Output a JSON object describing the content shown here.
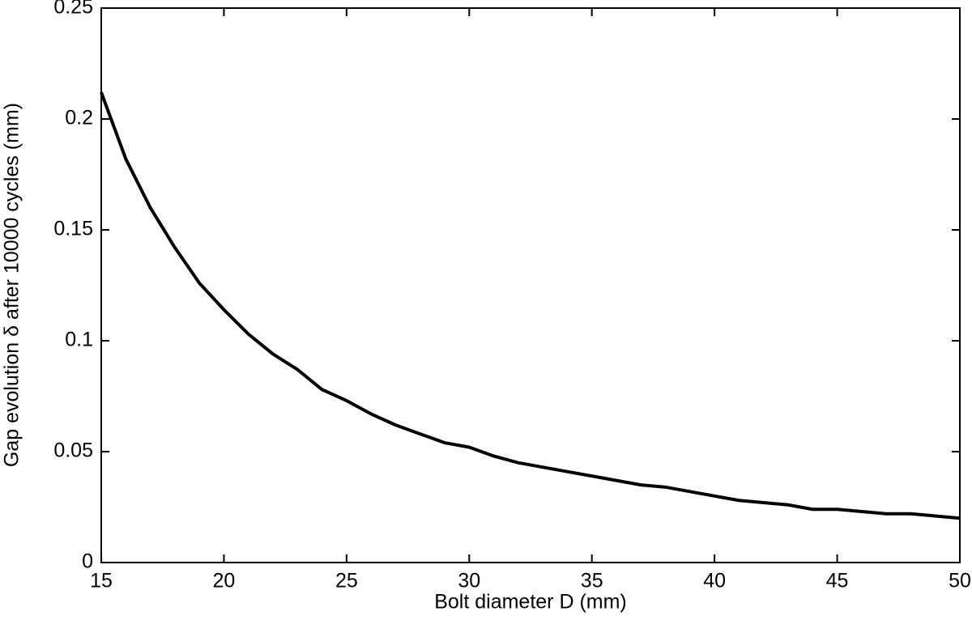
{
  "chart_data": {
    "type": "line",
    "x_label": "Bolt diameter D (mm)",
    "y_label": "Gap evolution δ after 10000 cycles (mm)",
    "x": [
      15,
      16,
      17,
      18,
      19,
      20,
      21,
      22,
      23,
      24,
      25,
      26,
      27,
      28,
      29,
      30,
      31,
      32,
      33,
      34,
      35,
      36,
      37,
      38,
      39,
      40,
      41,
      42,
      43,
      44,
      45,
      46,
      47,
      48,
      49,
      50
    ],
    "values": [
      0.212,
      0.182,
      0.16,
      0.142,
      0.126,
      0.114,
      0.103,
      0.094,
      0.087,
      0.078,
      0.073,
      0.067,
      0.062,
      0.058,
      0.054,
      0.052,
      0.048,
      0.045,
      0.043,
      0.041,
      0.039,
      0.037,
      0.035,
      0.034,
      0.032,
      0.03,
      0.028,
      0.027,
      0.026,
      0.024,
      0.024,
      0.023,
      0.022,
      0.022,
      0.021,
      0.02
    ],
    "color": "#000000",
    "xlim": [
      15,
      50
    ],
    "xticks": [
      15,
      20,
      25,
      30,
      35,
      40,
      45,
      50
    ],
    "ylim": [
      0,
      0.25
    ],
    "yticks": [
      0,
      0.05,
      0.1,
      0.15,
      0.2,
      0.25
    ],
    "grid": false
  }
}
